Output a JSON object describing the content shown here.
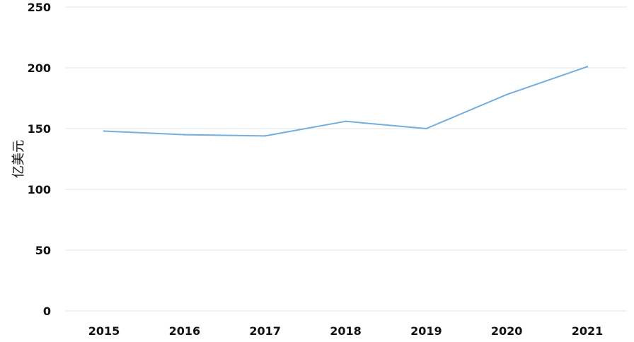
{
  "chart_data": {
    "type": "line",
    "title": "",
    "xlabel": "",
    "ylabel": "亿美元",
    "categories": [
      "2015",
      "2016",
      "2017",
      "2018",
      "2019",
      "2020",
      "2021"
    ],
    "series": [
      {
        "values": [
          148,
          145,
          144,
          156,
          150,
          178,
          201
        ],
        "color": "#73aede"
      }
    ],
    "ylim": [
      0,
      250
    ],
    "yticks": [
      0,
      50,
      100,
      150,
      200,
      250
    ],
    "grid": true,
    "legend": "none"
  }
}
